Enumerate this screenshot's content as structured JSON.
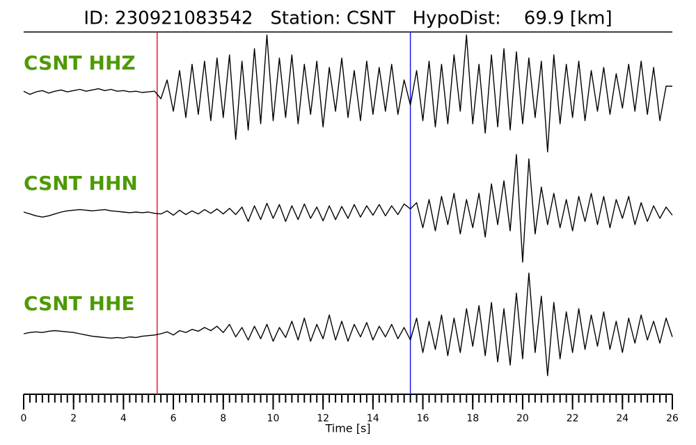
{
  "chart_data": {
    "type": "line",
    "title": "ID: 230921083542   Station: CSNT   HypoDist:    69.9 [km]",
    "xlabel": "Time [s]",
    "xlim": [
      0,
      26
    ],
    "xticks": [
      0,
      2,
      4,
      6,
      8,
      10,
      12,
      14,
      16,
      18,
      20,
      22,
      24,
      26
    ],
    "minor_tick_interval": 0.25,
    "vlines": [
      {
        "x": 5.35,
        "color": "#e8191d"
      },
      {
        "x": 15.5,
        "color": "#1a1ae6"
      }
    ],
    "label_color": "#4e9a06",
    "x": [
      0,
      0.25,
      0.5,
      0.75,
      1,
      1.25,
      1.5,
      1.75,
      2,
      2.25,
      2.5,
      2.75,
      3,
      3.25,
      3.5,
      3.75,
      4,
      4.25,
      4.5,
      4.75,
      5,
      5.25,
      5.5,
      5.75,
      6,
      6.25,
      6.5,
      6.75,
      7,
      7.25,
      7.5,
      7.75,
      8,
      8.25,
      8.5,
      8.75,
      9,
      9.25,
      9.5,
      9.75,
      10,
      10.25,
      10.5,
      10.75,
      11,
      11.25,
      11.5,
      11.75,
      12,
      12.25,
      12.5,
      12.75,
      13,
      13.25,
      13.5,
      13.75,
      14,
      14.25,
      14.5,
      14.75,
      15,
      15.25,
      15.5,
      15.75,
      16,
      16.25,
      16.5,
      16.75,
      17,
      17.25,
      17.5,
      17.75,
      18,
      18.25,
      18.5,
      18.75,
      19,
      19.25,
      19.5,
      19.75,
      20,
      20.25,
      20.5,
      20.75,
      21,
      21.25,
      21.5,
      21.75,
      22,
      22.25,
      22.5,
      22.75,
      23,
      23.25,
      23.5,
      23.75,
      24,
      24.25,
      24.5,
      24.75,
      25,
      25.25,
      25.5,
      25.75,
      26
    ],
    "series": [
      {
        "name": "CSNT HHZ",
        "color": "#000000",
        "values": [
          0.02,
          -0.03,
          0.01,
          0.03,
          -0.01,
          0.02,
          0.04,
          0.01,
          0.03,
          0.05,
          0.02,
          0.04,
          0.06,
          0.03,
          0.05,
          0.02,
          0.03,
          0.01,
          0.02,
          0.0,
          0.01,
          0.02,
          -0.1,
          0.2,
          -0.3,
          0.35,
          -0.4,
          0.45,
          -0.35,
          0.5,
          -0.45,
          0.55,
          -0.4,
          0.6,
          -0.75,
          0.5,
          -0.6,
          0.7,
          -0.5,
          0.92,
          -0.45,
          0.55,
          -0.4,
          0.6,
          -0.5,
          0.45,
          -0.35,
          0.5,
          -0.55,
          0.4,
          -0.3,
          0.55,
          -0.4,
          0.35,
          -0.45,
          0.5,
          -0.35,
          0.4,
          -0.3,
          0.45,
          -0.35,
          0.2,
          -0.2,
          0.35,
          -0.45,
          0.5,
          -0.55,
          0.45,
          -0.5,
          0.6,
          -0.3,
          0.92,
          -0.5,
          0.45,
          -0.65,
          0.6,
          -0.55,
          0.7,
          -0.6,
          0.65,
          -0.5,
          0.55,
          -0.4,
          0.5,
          -0.95,
          0.6,
          -0.5,
          0.45,
          -0.4,
          0.5,
          -0.45,
          0.35,
          -0.3,
          0.4,
          -0.35,
          0.3,
          -0.25,
          0.45,
          -0.3,
          0.5,
          -0.35,
          0.4,
          -0.45,
          0.1,
          0.1
        ]
      },
      {
        "name": "CSNT HHN",
        "color": "#000000",
        "values": [
          0.0,
          -0.03,
          -0.06,
          -0.08,
          -0.06,
          -0.03,
          0.0,
          0.02,
          0.03,
          0.04,
          0.03,
          0.02,
          0.03,
          0.04,
          0.02,
          0.01,
          0.0,
          -0.01,
          0.0,
          -0.01,
          0.0,
          -0.02,
          -0.03,
          0.02,
          -0.05,
          0.03,
          -0.04,
          0.02,
          -0.03,
          0.04,
          -0.02,
          0.05,
          -0.03,
          0.06,
          -0.04,
          0.08,
          -0.15,
          0.1,
          -0.12,
          0.14,
          -0.1,
          0.12,
          -0.15,
          0.1,
          -0.12,
          0.13,
          -0.1,
          0.08,
          -0.14,
          0.1,
          -0.12,
          0.09,
          -0.1,
          0.12,
          -0.08,
          0.1,
          -0.05,
          0.12,
          -0.06,
          0.1,
          -0.04,
          0.13,
          0.05,
          0.15,
          -0.25,
          0.2,
          -0.3,
          0.25,
          -0.2,
          0.3,
          -0.35,
          0.2,
          -0.25,
          0.3,
          -0.4,
          0.45,
          -0.2,
          0.5,
          -0.3,
          0.92,
          -0.8,
          0.85,
          -0.35,
          0.4,
          -0.2,
          0.3,
          -0.25,
          0.2,
          -0.3,
          0.25,
          -0.15,
          0.3,
          -0.2,
          0.25,
          -0.25,
          0.2,
          -0.1,
          0.25,
          -0.2,
          0.15,
          -0.15,
          0.1,
          -0.1,
          0.08,
          -0.05
        ]
      },
      {
        "name": "CSNT HHE",
        "color": "#000000",
        "values": [
          0.0,
          0.02,
          0.03,
          0.02,
          0.04,
          0.05,
          0.04,
          0.03,
          0.02,
          0.0,
          -0.02,
          -0.04,
          -0.05,
          -0.06,
          -0.07,
          -0.06,
          -0.07,
          -0.05,
          -0.06,
          -0.04,
          -0.03,
          -0.02,
          0.0,
          0.03,
          -0.02,
          0.05,
          0.02,
          0.07,
          0.04,
          0.1,
          0.05,
          0.12,
          0.02,
          0.15,
          -0.05,
          0.1,
          -0.1,
          0.12,
          -0.08,
          0.15,
          -0.12,
          0.1,
          -0.06,
          0.2,
          -0.1,
          0.25,
          -0.12,
          0.15,
          -0.08,
          0.3,
          -0.1,
          0.2,
          -0.12,
          0.15,
          -0.05,
          0.18,
          -0.1,
          0.12,
          -0.05,
          0.15,
          -0.08,
          0.1,
          -0.1,
          0.25,
          -0.3,
          0.2,
          -0.25,
          0.3,
          -0.35,
          0.25,
          -0.3,
          0.4,
          -0.2,
          0.45,
          -0.35,
          0.5,
          -0.45,
          0.4,
          -0.5,
          0.65,
          -0.4,
          0.97,
          -0.3,
          0.6,
          -0.67,
          0.5,
          -0.4,
          0.35,
          -0.3,
          0.4,
          -0.25,
          0.3,
          -0.2,
          0.35,
          -0.25,
          0.2,
          -0.3,
          0.25,
          -0.15,
          0.3,
          -0.1,
          0.2,
          -0.15,
          0.25,
          -0.05
        ]
      }
    ]
  }
}
